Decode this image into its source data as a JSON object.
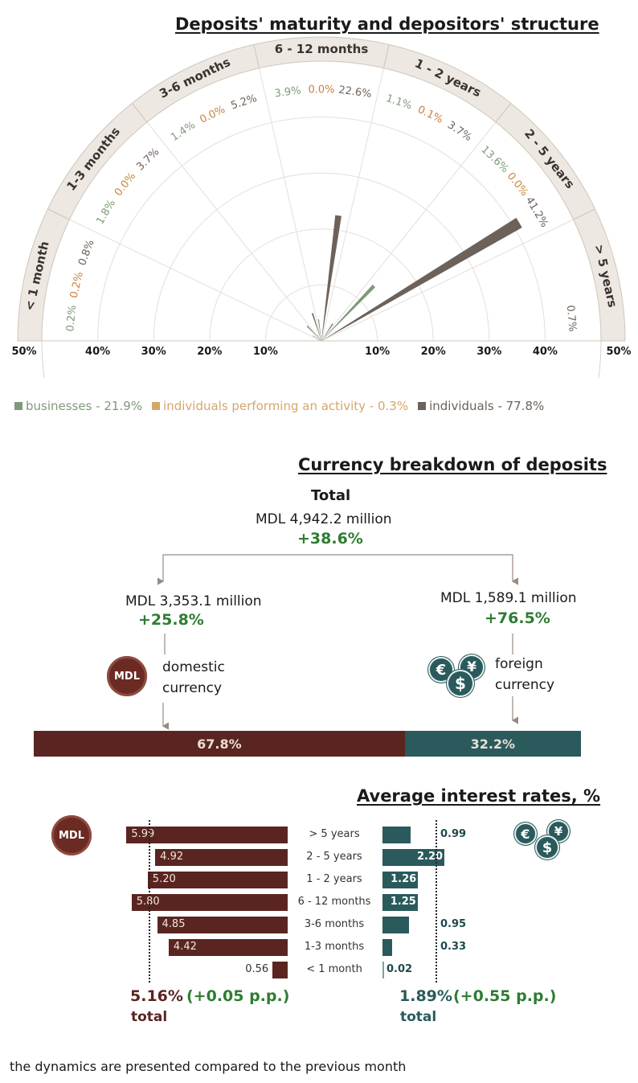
{
  "maturity": {
    "title": "Deposits' maturity and depositors' structure",
    "axis_ticks": [
      "50%",
      "40%",
      "30%",
      "20%",
      "10%",
      "10%",
      "20%",
      "30%",
      "40%",
      "50%"
    ],
    "legend": [
      {
        "label": "businesses - 21.9%",
        "color": "#7e9a78"
      },
      {
        "label": "individuals performing an activity - 0.3%",
        "color": "#d4a76a"
      },
      {
        "label": "individuals - 77.8%",
        "color": "#6d625a"
      }
    ]
  },
  "chart_data": {
    "type": "polar_bar",
    "title": "Deposits' maturity and depositors' structure",
    "rmax": 50,
    "categories": [
      "< 1 month",
      "1-3 months",
      "3-6 months",
      "6 - 12 months",
      "1 - 2 years",
      "2 - 5 years",
      "> 5 years"
    ],
    "series": [
      {
        "name": "businesses",
        "values": [
          0.2,
          1.8,
          1.4,
          3.9,
          1.1,
          13.6,
          null
        ],
        "labels": [
          "0.2%",
          "1.8%",
          "1.4%",
          "3.9%",
          "1.1%",
          "13.6%",
          ""
        ],
        "color": "#7e9a78"
      },
      {
        "name": "individuals performing an activity",
        "values": [
          0.2,
          0.0,
          0.0,
          0.0,
          0.1,
          0.0,
          null
        ],
        "labels": [
          "0.2%",
          "0.0%",
          "0.0%",
          "0.0%",
          "0.1%",
          "0.0%",
          ""
        ],
        "color": "#c8843e"
      },
      {
        "name": "individuals",
        "values": [
          0.8,
          3.7,
          5.2,
          22.6,
          3.7,
          41.2,
          0.7
        ],
        "labels": [
          "0.8%",
          "3.7%",
          "5.2%",
          "22.6%",
          "3.7%",
          "41.2%",
          "0.7%"
        ],
        "color": "#6d625a"
      }
    ]
  },
  "currency": {
    "title": "Currency breakdown of deposits",
    "total_label": "Total",
    "total_value": "MDL 4,942.2 million",
    "total_change": "+38.6%",
    "domestic_value": "MDL 3,353.1 million",
    "domestic_change": "+25.8%",
    "domestic_label_1": "domestic",
    "domestic_label_2": "currency",
    "foreign_value": "MDL 1,589.1 million",
    "foreign_change": "+76.5%",
    "foreign_label_1": "foreign",
    "foreign_label_2": "currency",
    "domestic_share": 67.8,
    "domestic_share_label": "67.8%",
    "foreign_share": 32.2,
    "foreign_share_label": "32.2%",
    "mdl_badge": "MDL",
    "coin_symbols": [
      "€",
      "¥",
      "$"
    ],
    "domestic_color": "#5a2521",
    "foreign_color": "#2a5a5c"
  },
  "rates": {
    "title": "Average interest rates, %",
    "mdl_badge": "MDL",
    "categories": [
      "> 5 years",
      "2 - 5 years",
      "1 - 2 years",
      "6 - 12 months",
      "3-6 months",
      "1-3 months",
      "< 1 month"
    ],
    "mdl": [
      5.99,
      4.92,
      5.2,
      5.8,
      4.85,
      4.42,
      0.56
    ],
    "mdl_labels": [
      "5.99",
      "4.92",
      "5.20",
      "5.80",
      "4.85",
      "4.42",
      "0.56"
    ],
    "fx": [
      0.99,
      2.2,
      1.26,
      1.25,
      0.95,
      0.33,
      0.02
    ],
    "fx_labels": [
      "0.99",
      "2.20",
      "1.26",
      "1.25",
      "0.95",
      "0.33",
      "0.02"
    ],
    "mdl_total": 5.16,
    "mdl_total_label": "5.16%",
    "mdl_change": "(+0.05 p.p.)",
    "fx_total": 1.89,
    "fx_total_label": "1.89%",
    "fx_change": "(+0.55 p.p.)",
    "total_word": "total"
  },
  "footnote": "the dynamics are presented compared to the previous month"
}
